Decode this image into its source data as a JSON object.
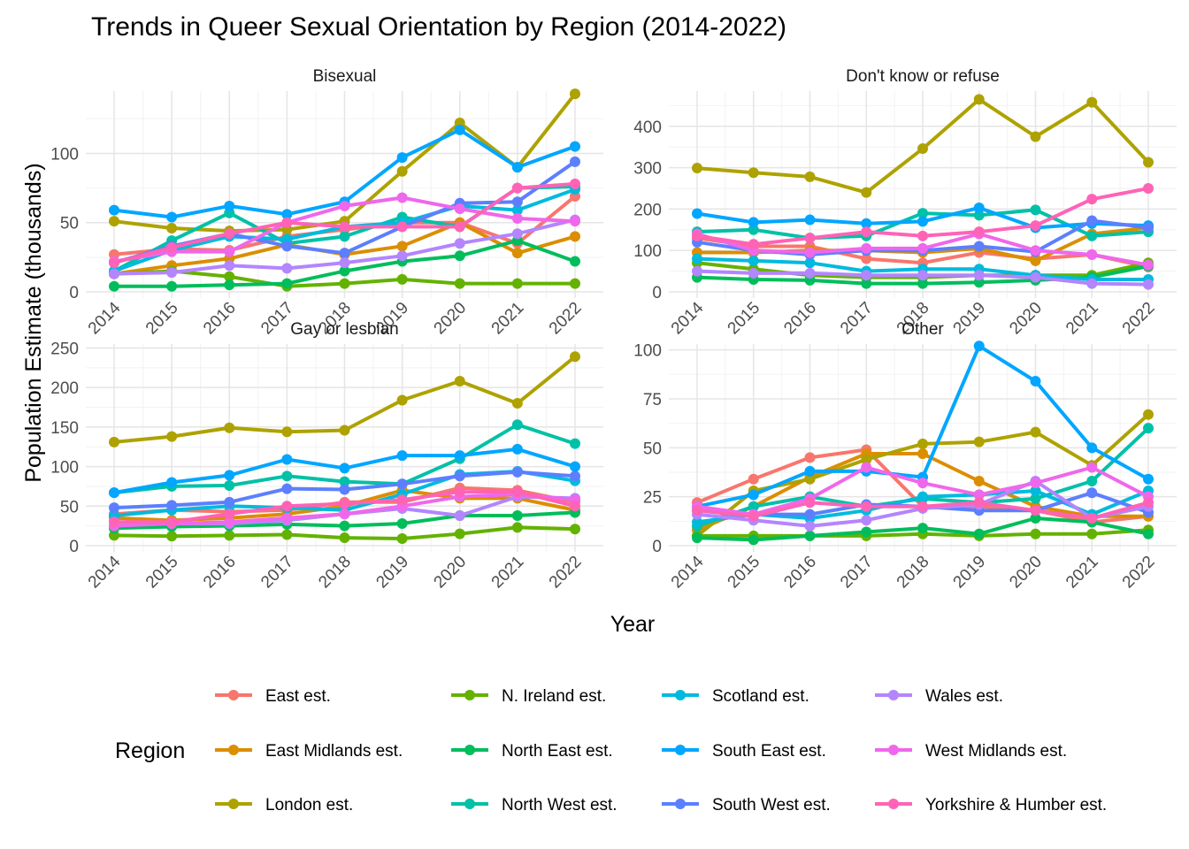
{
  "chart_data": {
    "type": "line",
    "title": "Trends in Queer Sexual Orientation by Region (2014-2022)",
    "xlabel": "Year",
    "ylabel": "Population Estimate (thousands)",
    "x": [
      2014,
      2015,
      2016,
      2017,
      2018,
      2019,
      2020,
      2021,
      2022
    ],
    "x_tick_labels": [
      "2014",
      "2015",
      "2016",
      "2017",
      "2018",
      "2019",
      "2020",
      "2021",
      "2022"
    ],
    "grid": true,
    "legend": {
      "title": "Region",
      "position": "bottom",
      "entries": [
        "East est.",
        "East Midlands est.",
        "London est.",
        "N. Ireland est.",
        "North East est.",
        "North West est.",
        "Scotland est.",
        "South East est.",
        "South West est.",
        "Wales est.",
        "West Midlands est.",
        "Yorkshire & Humber est."
      ]
    },
    "colors": {
      "East est.": "#F8766D",
      "East Midlands est.": "#DB8E00",
      "London est.": "#AEA200",
      "N. Ireland est.": "#64B200",
      "North East est.": "#00BD5C",
      "North West est.": "#00C1A7",
      "Scotland est.": "#00BADE",
      "South East est.": "#00A6FF",
      "South West est.": "#5C7FFF",
      "Wales est.": "#B385FF",
      "West Midlands est.": "#EF67EB",
      "Yorkshire & Humber est.": "#FF63B6"
    },
    "facets": [
      {
        "name": "Bisexual",
        "ylim": [
          0,
          145
        ],
        "y_ticks": [
          0,
          50,
          100
        ],
        "series": [
          {
            "name": "East est.",
            "values": [
              27,
              31,
              30,
              40,
              45,
              50,
              50,
              35,
              69
            ]
          },
          {
            "name": "East Midlands est.",
            "values": [
              13,
              19,
              24,
              34,
              27,
              33,
              50,
              28,
              40
            ]
          },
          {
            "name": "London est.",
            "values": [
              51,
              46,
              44,
              45,
              51,
              87,
              122,
              90,
              143
            ]
          },
          {
            "name": "N. Ireland est.",
            "values": [
              13,
              15,
              11,
              4,
              6,
              9,
              6,
              6,
              6
            ]
          },
          {
            "name": "North East est.",
            "values": [
              4,
              4,
              5,
              6,
              15,
              22,
              26,
              37,
              22
            ]
          },
          {
            "name": "North West est.",
            "values": [
              15,
              37,
              57,
              35,
              40,
              54,
              47,
              75,
              76
            ]
          },
          {
            "name": "Scotland est.",
            "values": [
              15,
              30,
              40,
              38,
              47,
              50,
              62,
              59,
              74
            ]
          },
          {
            "name": "South East est.",
            "values": [
              59,
              54,
              62,
              56,
              65,
              97,
              117,
              90,
              105
            ]
          },
          {
            "name": "South West est.",
            "values": [
              21,
              33,
              42,
              33,
              28,
              47,
              64,
              65,
              94
            ]
          },
          {
            "name": "Wales est.",
            "values": [
              13,
              14,
              19,
              17,
              21,
              26,
              35,
              42,
              52
            ]
          },
          {
            "name": "West Midlands est.",
            "values": [
              22,
              29,
              29,
              50,
              62,
              68,
              60,
              53,
              51
            ]
          },
          {
            "name": "Yorkshire & Humber est.",
            "values": [
              21,
              32,
              42,
              50,
              47,
              47,
              47,
              75,
              78
            ]
          }
        ]
      },
      {
        "name": "Don't know or refuse",
        "ylim": [
          0,
          485
        ],
        "y_ticks": [
          0,
          100,
          200,
          300,
          400
        ],
        "series": [
          {
            "name": "East est.",
            "values": [
              130,
              110,
              110,
              80,
              70,
              95,
              80,
              90,
              60
            ]
          },
          {
            "name": "East Midlands est.",
            "values": [
              95,
              95,
              100,
              100,
              95,
              105,
              75,
              140,
              155
            ]
          },
          {
            "name": "London est.",
            "values": [
              299,
              288,
              278,
              240,
              346,
              465,
              375,
              458,
              313
            ]
          },
          {
            "name": "N. Ireland est.",
            "values": [
              70,
              55,
              40,
              35,
              35,
              40,
              40,
              40,
              70
            ]
          },
          {
            "name": "North East est.",
            "values": [
              35,
              30,
              28,
              20,
              20,
              23,
              28,
              35,
              62
            ]
          },
          {
            "name": "North West est.",
            "values": [
              145,
              150,
              130,
              135,
              190,
              185,
              198,
              135,
              145
            ]
          },
          {
            "name": "Scotland est.",
            "values": [
              80,
              75,
              70,
              50,
              55,
              55,
              40,
              30,
              30
            ]
          },
          {
            "name": "South East est.",
            "values": [
              189,
              168,
              174,
              165,
              170,
              203,
              155,
              165,
              160
            ]
          },
          {
            "name": "South West est.",
            "values": [
              120,
              100,
              90,
              100,
              100,
              110,
              97,
              172,
              155
            ]
          },
          {
            "name": "Wales est.",
            "values": [
              50,
              45,
              45,
              40,
              40,
              40,
              35,
              20,
              18
            ]
          },
          {
            "name": "West Midlands est.",
            "values": [
              140,
              100,
              95,
              105,
              105,
              140,
              100,
              90,
              65
            ]
          },
          {
            "name": "Yorkshire & Humber est.",
            "values": [
              135,
              115,
              130,
              145,
              135,
              145,
              160,
              224,
              250
            ]
          }
        ]
      },
      {
        "name": "Gay or lesbian",
        "ylim": [
          0,
          255
        ],
        "y_ticks": [
          0,
          50,
          100,
          150,
          200,
          250
        ],
        "series": [
          {
            "name": "East est.",
            "values": [
              40,
              45,
              43,
              45,
              55,
              55,
              73,
              70,
              55
            ]
          },
          {
            "name": "East Midlands est.",
            "values": [
              35,
              32,
              35,
              40,
              50,
              70,
              60,
              60,
              45
            ]
          },
          {
            "name": "London est.",
            "values": [
              131,
              138,
              149,
              144,
              146,
              184,
              208,
              180,
              239
            ]
          },
          {
            "name": "N. Ireland est.",
            "values": [
              13,
              12,
              13,
              14,
              10,
              9,
              15,
              23,
              21
            ]
          },
          {
            "name": "North East est.",
            "values": [
              22,
              24,
              25,
              27,
              25,
              28,
              38,
              38,
              42
            ]
          },
          {
            "name": "North West est.",
            "values": [
              67,
              75,
              76,
              88,
              81,
              78,
              110,
              153,
              129
            ]
          },
          {
            "name": "Scotland est.",
            "values": [
              38,
              45,
              50,
              48,
              45,
              65,
              90,
              94,
              82
            ]
          },
          {
            "name": "South East est.",
            "values": [
              67,
              80,
              89,
              109,
              98,
              114,
              114,
              122,
              100
            ]
          },
          {
            "name": "South West est.",
            "values": [
              48,
              51,
              55,
              72,
              71,
              78,
              88,
              93,
              88
            ]
          },
          {
            "name": "Wales est.",
            "values": [
              30,
              28,
              28,
              32,
              40,
              47,
              38,
              62,
              60
            ]
          },
          {
            "name": "West Midlands est.",
            "values": [
              25,
              28,
              30,
              35,
              40,
              50,
              62,
              65,
              58
            ]
          },
          {
            "name": "Yorkshire & Humber est.",
            "values": [
              30,
              30,
              40,
              50,
              53,
              58,
              68,
              68,
              50
            ]
          }
        ]
      },
      {
        "name": "Other",
        "ylim": [
          0,
          103
        ],
        "y_ticks": [
          0,
          25,
          50,
          75,
          100
        ],
        "series": [
          {
            "name": "East est.",
            "values": [
              22,
              34,
              45,
              49,
              20,
              20,
              18,
              12,
              15
            ]
          },
          {
            "name": "East Midlands est.",
            "values": [
              8,
              20,
              35,
              47,
              47,
              33,
              20,
              15,
              15
            ]
          },
          {
            "name": "London est.",
            "values": [
              5,
              28,
              34,
              44,
              52,
              53,
              58,
              41,
              67
            ]
          },
          {
            "name": "N. Ireland est.",
            "values": [
              5,
              5,
              5,
              5,
              6,
              5,
              6,
              6,
              8
            ]
          },
          {
            "name": "North East est.",
            "values": [
              4,
              3,
              5,
              7,
              9,
              6,
              14,
              12,
              6
            ]
          },
          {
            "name": "North West est.",
            "values": [
              10,
              20,
              25,
              20,
              24,
              22,
              24,
              33,
              60
            ]
          },
          {
            "name": "Scotland est.",
            "values": [
              12,
              16,
              14,
              18,
              25,
              26,
              28,
              16,
              28
            ]
          },
          {
            "name": "South East est.",
            "values": [
              20,
              26,
              38,
              38,
              35,
              102,
              84,
              50,
              34
            ]
          },
          {
            "name": "South West est.",
            "values": [
              18,
              16,
              16,
              21,
              20,
              18,
              18,
              27,
              17
            ]
          },
          {
            "name": "Wales est.",
            "values": [
              16,
              13,
              10,
              13,
              19,
              21,
              33,
              14,
              20
            ]
          },
          {
            "name": "West Midlands est.",
            "values": [
              20,
              16,
              24,
              40,
              32,
              26,
              32,
              40,
              25
            ]
          },
          {
            "name": "Yorkshire & Humber est.",
            "values": [
              18,
              15,
              22,
              20,
              20,
              22,
              18,
              14,
              22
            ]
          }
        ]
      }
    ]
  }
}
